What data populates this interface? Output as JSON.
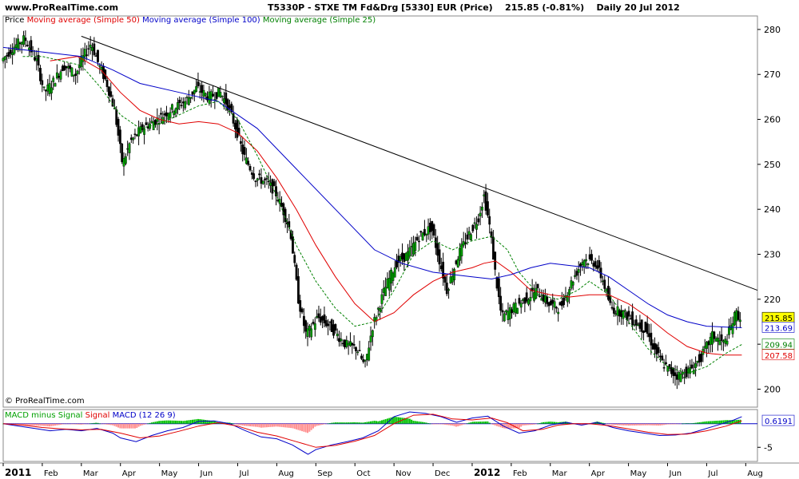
{
  "header": {
    "site": "www.ProRealTime.com",
    "title_left": "T5330P - STXE TM Fd&Drg [5330] EUR (Price)",
    "price_change": "215.85 (-0.81%)",
    "period_date": "Daily  20 Jul 2012"
  },
  "legend": {
    "price": "Price",
    "ma50": "Moving average (Simple 50)",
    "ma100": "Moving average (Simple 100)",
    "ma25": "Moving average (Simple 25)"
  },
  "macd_legend": {
    "minus_signal": "MACD minus Signal",
    "signal": "Signal",
    "macd": "MACD (12 26 9)"
  },
  "copyright": "© ProRealTime.com",
  "colors": {
    "ma50": "#e00000",
    "ma100": "#0000c8",
    "ma25": "#008000",
    "candle_up": "#00a000",
    "trendline": "#000000",
    "macd_hist_pos": "#00c000",
    "macd_hist_neg": "#ff9090",
    "macd_line": "#0000c8",
    "signal_line": "#e00000",
    "last_price_bg": "#ffff00"
  },
  "chart_data": [
    {
      "type": "candlestick",
      "title": "T5330P - STXE TM Fd&Drg [5330] EUR (Price)",
      "y_ticks": [
        200,
        210,
        220,
        230,
        240,
        250,
        260,
        270,
        280
      ],
      "ylim": [
        196,
        283
      ],
      "x_ticks": [
        "2011",
        "Feb",
        "Mar",
        "Apr",
        "May",
        "Jun",
        "Jul",
        "Aug",
        "Sep",
        "Oct",
        "Nov",
        "Dec",
        "2012",
        "Feb",
        "Mar",
        "Apr",
        "May",
        "Jun",
        "Jul",
        "Aug"
      ],
      "xlim": [
        0,
        19.3
      ],
      "price_path": [
        [
          0.0,
          273
        ],
        [
          0.3,
          276
        ],
        [
          0.6,
          278
        ],
        [
          0.9,
          273
        ],
        [
          1.1,
          266
        ],
        [
          1.3,
          268
        ],
        [
          1.6,
          272
        ],
        [
          1.9,
          270
        ],
        [
          2.1,
          274
        ],
        [
          2.3,
          277
        ],
        [
          2.5,
          272
        ],
        [
          2.7,
          268
        ],
        [
          2.9,
          262
        ],
        [
          3.0,
          256
        ],
        [
          3.1,
          250
        ],
        [
          3.3,
          255
        ],
        [
          3.6,
          258
        ],
        [
          4.0,
          260
        ],
        [
          4.3,
          262
        ],
        [
          4.7,
          264
        ],
        [
          5.0,
          267
        ],
        [
          5.3,
          265
        ],
        [
          5.6,
          266
        ],
        [
          5.8,
          263
        ],
        [
          6.0,
          258
        ],
        [
          6.2,
          252
        ],
        [
          6.5,
          247
        ],
        [
          6.8,
          246
        ],
        [
          7.0,
          244
        ],
        [
          7.2,
          240
        ],
        [
          7.4,
          235
        ],
        [
          7.6,
          220
        ],
        [
          7.8,
          212
        ],
        [
          8.1,
          216
        ],
        [
          8.4,
          214
        ],
        [
          8.8,
          210
        ],
        [
          9.1,
          209
        ],
        [
          9.3,
          205
        ],
        [
          9.5,
          214
        ],
        [
          9.8,
          222
        ],
        [
          10.1,
          228
        ],
        [
          10.4,
          230
        ],
        [
          10.7,
          234
        ],
        [
          11.0,
          236
        ],
        [
          11.2,
          229
        ],
        [
          11.4,
          222
        ],
        [
          11.7,
          230
        ],
        [
          12.0,
          235
        ],
        [
          12.2,
          238
        ],
        [
          12.35,
          243
        ],
        [
          12.5,
          236
        ],
        [
          12.65,
          225
        ],
        [
          12.8,
          216
        ],
        [
          13.1,
          218
        ],
        [
          13.4,
          220
        ],
        [
          13.7,
          222
        ],
        [
          14.0,
          219
        ],
        [
          14.3,
          218
        ],
        [
          14.6,
          224
        ],
        [
          14.9,
          229
        ],
        [
          15.2,
          228
        ],
        [
          15.4,
          224
        ],
        [
          15.6,
          218
        ],
        [
          15.9,
          217
        ],
        [
          16.2,
          215
        ],
        [
          16.5,
          213
        ],
        [
          16.7,
          209
        ],
        [
          16.9,
          206
        ],
        [
          17.1,
          204
        ],
        [
          17.3,
          203
        ],
        [
          17.6,
          204
        ],
        [
          17.9,
          207
        ],
        [
          18.2,
          212
        ],
        [
          18.5,
          210
        ],
        [
          18.8,
          217
        ],
        [
          18.9,
          215.85
        ]
      ],
      "series": [
        {
          "name": "Moving average (Simple 50)",
          "points": [
            [
              1.2,
              273
            ],
            [
              1.9,
              274
            ],
            [
              2.5,
              271
            ],
            [
              3.0,
              266
            ],
            [
              3.5,
              262
            ],
            [
              4.0,
              260
            ],
            [
              4.5,
              259
            ],
            [
              5.0,
              259.5
            ],
            [
              5.5,
              259
            ],
            [
              6.0,
              257
            ],
            [
              6.5,
              253
            ],
            [
              7.0,
              247
            ],
            [
              7.5,
              240
            ],
            [
              8.0,
              232
            ],
            [
              8.5,
              225
            ],
            [
              9.0,
              219
            ],
            [
              9.5,
              215
            ],
            [
              10.0,
              217
            ],
            [
              10.5,
              221
            ],
            [
              11.0,
              224
            ],
            [
              11.5,
              226
            ],
            [
              12.0,
              227
            ],
            [
              12.3,
              228
            ],
            [
              12.6,
              228.5
            ],
            [
              13.0,
              226
            ],
            [
              13.5,
              222
            ],
            [
              14.0,
              221
            ],
            [
              14.5,
              220.5
            ],
            [
              15.0,
              221
            ],
            [
              15.5,
              221
            ],
            [
              16.0,
              219
            ],
            [
              16.5,
              216
            ],
            [
              17.0,
              212.5
            ],
            [
              17.5,
              209.5
            ],
            [
              18.0,
              208
            ],
            [
              18.5,
              207.6
            ],
            [
              18.9,
              207.58
            ]
          ]
        },
        {
          "name": "Moving average (Simple 100)",
          "points": [
            [
              0.0,
              276
            ],
            [
              1.0,
              275
            ],
            [
              2.0,
              274
            ],
            [
              2.8,
              271
            ],
            [
              3.5,
              268
            ],
            [
              4.5,
              266
            ],
            [
              5.5,
              264
            ],
            [
              6.5,
              258
            ],
            [
              7.5,
              249
            ],
            [
              8.5,
              240
            ],
            [
              9.5,
              231
            ],
            [
              10.2,
              228
            ],
            [
              11.0,
              226
            ],
            [
              11.5,
              225.5
            ],
            [
              12.0,
              225
            ],
            [
              12.5,
              224.5
            ],
            [
              13.0,
              225.5
            ],
            [
              13.5,
              227
            ],
            [
              14.0,
              228
            ],
            [
              14.5,
              227.5
            ],
            [
              15.0,
              227
            ],
            [
              15.5,
              225
            ],
            [
              16.0,
              222
            ],
            [
              16.5,
              219
            ],
            [
              17.0,
              216.5
            ],
            [
              17.5,
              215
            ],
            [
              18.0,
              214
            ],
            [
              18.5,
              213.8
            ],
            [
              18.9,
              213.69
            ]
          ]
        },
        {
          "name": "Moving average (Simple 25)",
          "points": [
            [
              0.5,
              274
            ],
            [
              1.0,
              274
            ],
            [
              1.5,
              273
            ],
            [
              2.0,
              272
            ],
            [
              2.5,
              267
            ],
            [
              3.0,
              261
            ],
            [
              3.5,
              258
            ],
            [
              4.0,
              259
            ],
            [
              4.5,
              261
            ],
            [
              5.0,
              263
            ],
            [
              5.5,
              264
            ],
            [
              6.0,
              260
            ],
            [
              6.5,
              252
            ],
            [
              7.0,
              243
            ],
            [
              7.5,
              232
            ],
            [
              8.0,
              224
            ],
            [
              8.5,
              218
            ],
            [
              9.0,
              214
            ],
            [
              9.5,
              215
            ],
            [
              10.0,
              222
            ],
            [
              10.5,
              230
            ],
            [
              11.0,
              233
            ],
            [
              11.5,
              231
            ],
            [
              12.0,
              233
            ],
            [
              12.5,
              234
            ],
            [
              12.9,
              231
            ],
            [
              13.2,
              226
            ],
            [
              13.7,
              221
            ],
            [
              14.2,
              220
            ],
            [
              14.7,
              222
            ],
            [
              15.0,
              224
            ],
            [
              15.5,
              221
            ],
            [
              16.0,
              215
            ],
            [
              16.5,
              209
            ],
            [
              17.0,
              205
            ],
            [
              17.5,
              203.5
            ],
            [
              18.0,
              205
            ],
            [
              18.5,
              208
            ],
            [
              18.9,
              209.94
            ]
          ]
        }
      ],
      "trendline": [
        [
          2.0,
          278.5
        ],
        [
          19.3,
          222
        ]
      ],
      "last_values": {
        "price": "215.85",
        "ma100": "213.69",
        "ma25": "209.94",
        "ma50": "207.58"
      }
    },
    {
      "type": "bar",
      "title": "MACD (12 26 9)",
      "y_ticks": [
        -5
      ],
      "ylim": [
        -8,
        3
      ],
      "xlim": [
        0,
        19.3
      ],
      "zero_level": 0,
      "macd_path": [
        [
          0.0,
          0
        ],
        [
          0.4,
          -0.5
        ],
        [
          0.8,
          -1.0
        ],
        [
          1.2,
          -1.5
        ],
        [
          1.6,
          -1.2
        ],
        [
          2.0,
          -1.5
        ],
        [
          2.4,
          -1.0
        ],
        [
          2.8,
          -2.0
        ],
        [
          3.0,
          -3.0
        ],
        [
          3.4,
          -3.8
        ],
        [
          3.8,
          -2.5
        ],
        [
          4.2,
          -1.5
        ],
        [
          4.6,
          -0.8
        ],
        [
          5.0,
          0.5
        ],
        [
          5.4,
          0.6
        ],
        [
          5.8,
          0
        ],
        [
          6.2,
          -1.5
        ],
        [
          6.6,
          -2.8
        ],
        [
          7.0,
          -3.2
        ],
        [
          7.4,
          -4.5
        ],
        [
          7.8,
          -6.5
        ],
        [
          8.0,
          -5.5
        ],
        [
          8.4,
          -4.5
        ],
        [
          8.8,
          -3.8
        ],
        [
          9.2,
          -3.0
        ],
        [
          9.6,
          -1.5
        ],
        [
          10.0,
          1.5
        ],
        [
          10.4,
          2.5
        ],
        [
          10.8,
          2.2
        ],
        [
          11.2,
          1.5
        ],
        [
          11.6,
          0.3
        ],
        [
          12.0,
          1.2
        ],
        [
          12.4,
          1.6
        ],
        [
          12.8,
          -0.5
        ],
        [
          13.2,
          -2.0
        ],
        [
          13.6,
          -1.5
        ],
        [
          14.0,
          -0.3
        ],
        [
          14.4,
          0.3
        ],
        [
          14.8,
          -0.3
        ],
        [
          15.2,
          0.3
        ],
        [
          15.6,
          -0.8
        ],
        [
          16.0,
          -1.5
        ],
        [
          16.4,
          -2.0
        ],
        [
          16.8,
          -2.5
        ],
        [
          17.2,
          -2.4
        ],
        [
          17.6,
          -2.0
        ],
        [
          18.0,
          -1.0
        ],
        [
          18.4,
          0
        ],
        [
          18.7,
          0.8
        ],
        [
          18.9,
          1.5
        ]
      ],
      "signal_path": [
        [
          0.0,
          0
        ],
        [
          0.5,
          -0.3
        ],
        [
          1.0,
          -0.8
        ],
        [
          1.5,
          -1.1
        ],
        [
          2.0,
          -1.3
        ],
        [
          2.5,
          -1.2
        ],
        [
          3.0,
          -2.0
        ],
        [
          3.5,
          -3.0
        ],
        [
          4.0,
          -2.6
        ],
        [
          4.5,
          -1.6
        ],
        [
          5.0,
          -0.5
        ],
        [
          5.5,
          0.2
        ],
        [
          6.0,
          -0.5
        ],
        [
          6.5,
          -1.8
        ],
        [
          7.0,
          -2.6
        ],
        [
          7.5,
          -3.8
        ],
        [
          8.0,
          -5.0
        ],
        [
          8.5,
          -4.6
        ],
        [
          9.0,
          -3.7
        ],
        [
          9.5,
          -2.5
        ],
        [
          10.0,
          0
        ],
        [
          10.5,
          1.8
        ],
        [
          11.0,
          2.0
        ],
        [
          11.5,
          1.0
        ],
        [
          12.0,
          0.8
        ],
        [
          12.5,
          1.2
        ],
        [
          12.9,
          0.2
        ],
        [
          13.3,
          -1.5
        ],
        [
          13.8,
          -1.2
        ],
        [
          14.2,
          -0.3
        ],
        [
          14.6,
          0
        ],
        [
          15.0,
          0
        ],
        [
          15.5,
          -0.4
        ],
        [
          16.0,
          -1.1
        ],
        [
          16.5,
          -1.8
        ],
        [
          17.0,
          -2.3
        ],
        [
          17.5,
          -2.2
        ],
        [
          18.0,
          -1.5
        ],
        [
          18.5,
          -0.5
        ],
        [
          18.9,
          0.6191
        ]
      ],
      "last_values": {
        "signal": "0.6191",
        "macd": "1.4"
      }
    }
  ]
}
